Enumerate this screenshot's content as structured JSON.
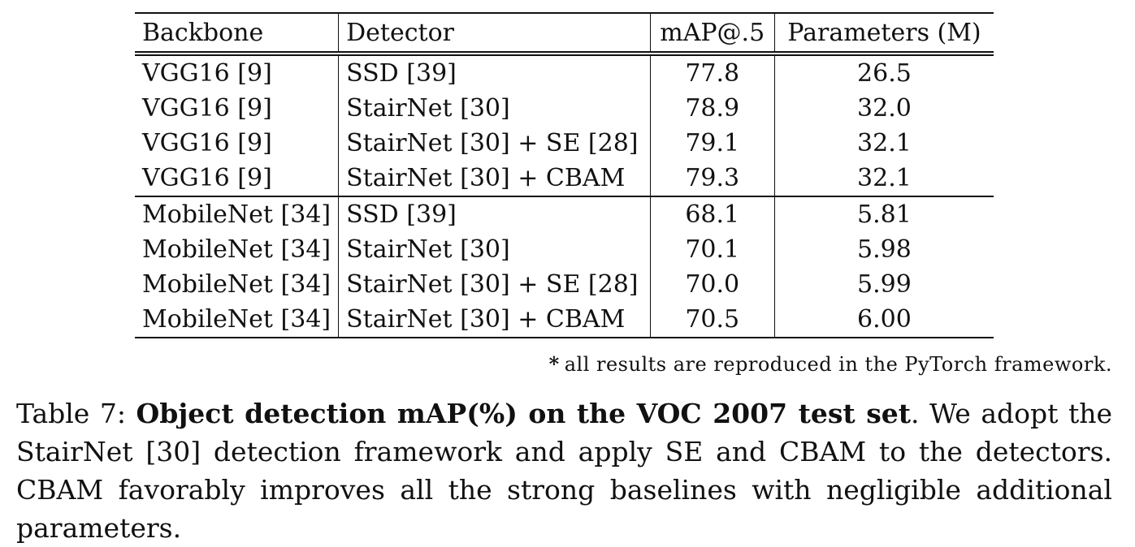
{
  "table": {
    "headers": [
      "Backbone",
      "Detector",
      "mAP@.5",
      "Parameters (M)"
    ],
    "groups": [
      [
        {
          "backbone": "VGG16 [9]",
          "detector": "SSD [39]",
          "map": "77.8",
          "params": "26.5"
        },
        {
          "backbone": "VGG16 [9]",
          "detector": "StairNet [30]",
          "map": "78.9",
          "params": "32.0"
        },
        {
          "backbone": "VGG16 [9]",
          "detector": "StairNet [30] + SE [28]",
          "map": "79.1",
          "params": "32.1"
        },
        {
          "backbone": "VGG16 [9]",
          "detector": "StairNet [30] + CBAM",
          "map": "79.3",
          "params": "32.1"
        }
      ],
      [
        {
          "backbone": "MobileNet [34]",
          "detector": "SSD [39]",
          "map": "68.1",
          "params": "5.81"
        },
        {
          "backbone": "MobileNet [34]",
          "detector": "StairNet [30]",
          "map": "70.1",
          "params": "5.98"
        },
        {
          "backbone": "MobileNet [34]",
          "detector": "StairNet [30] + SE [28]",
          "map": "70.0",
          "params": "5.99"
        },
        {
          "backbone": "MobileNet [34]",
          "detector": "StairNet [30] + CBAM",
          "map": "70.5",
          "params": "6.00"
        }
      ]
    ]
  },
  "footnote": {
    "mark": "*",
    "text": "all results are reproduced in the PyTorch framework."
  },
  "caption": {
    "label": "Table 7:",
    "title": "Object detection mAP(%) on the VOC 2007 test set",
    "body": ". We adopt the StairNet [30] detection framework and apply SE and CBAM to the detectors. CBAM favorably improves all the strong baselines with negligible additional parameters."
  }
}
